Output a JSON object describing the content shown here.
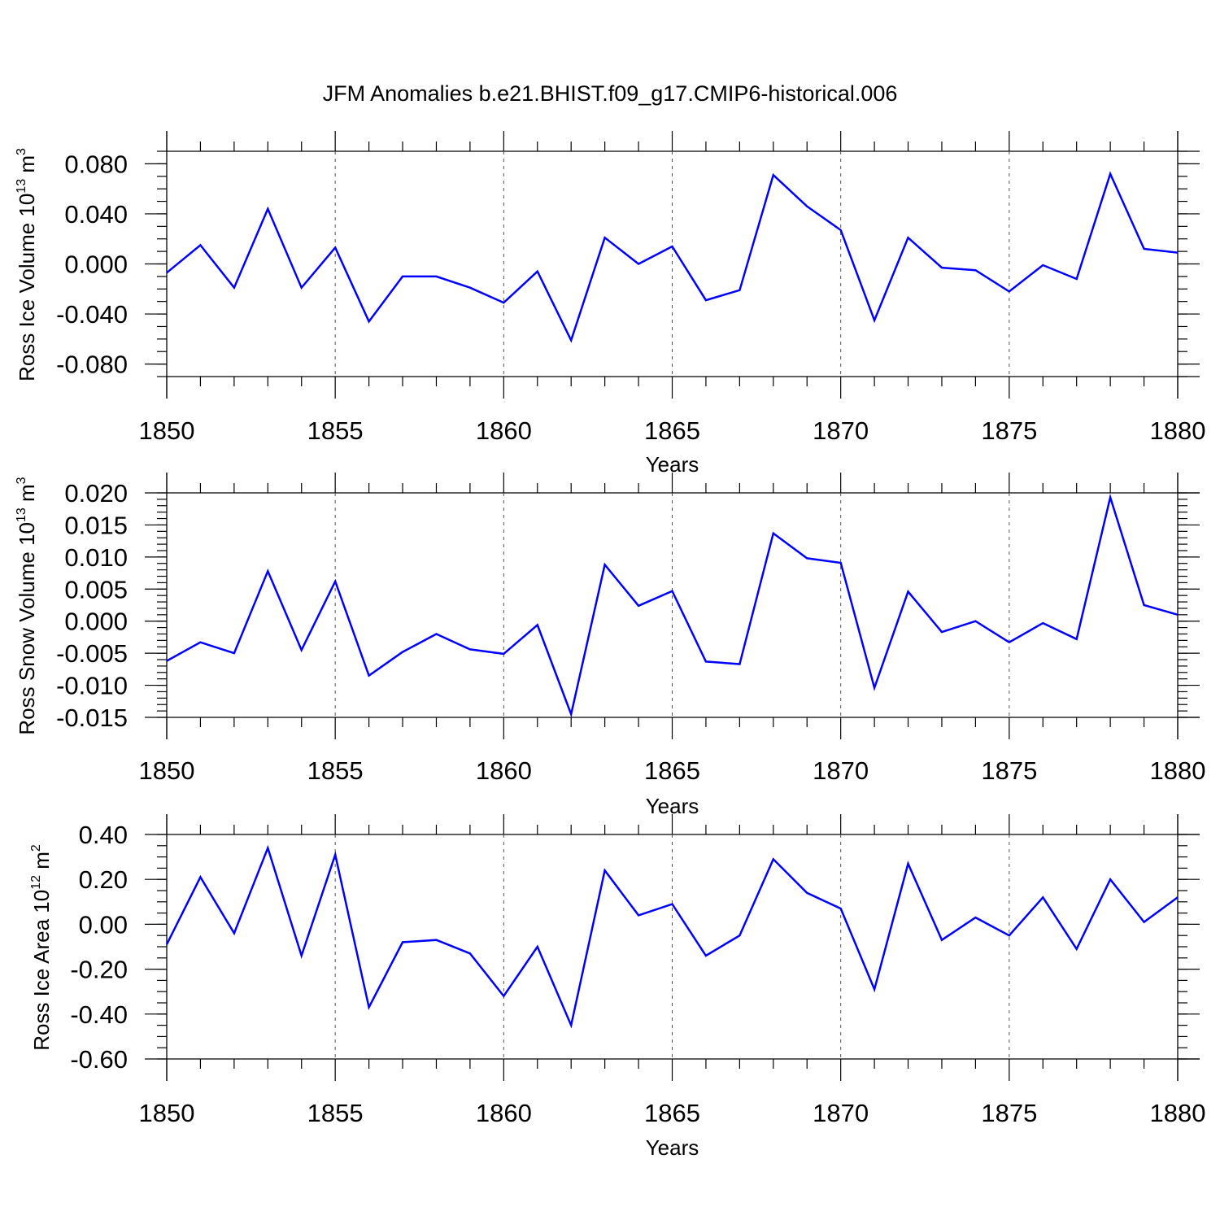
{
  "chart_data": [
    {
      "type": "line",
      "title": "JFM Anomalies b.e21.BHIST.f09_g17.CMIP6-historical.006",
      "xlabel": "Years",
      "ylabel_main": "Ross Ice Volume 10",
      "ylabel_sup": "13",
      "ylabel_unit": "m",
      "ylabel_unit_sup": "3",
      "xlim": [
        1850,
        1880
      ],
      "ylim": [
        -0.09,
        0.09
      ],
      "xticks": [
        "1850",
        "1855",
        "1860",
        "1865",
        "1870",
        "1875",
        "1880"
      ],
      "yticks": [
        -0.08,
        -0.04,
        0.0,
        0.04,
        0.08
      ],
      "ytick_labels": [
        "-0.080",
        "-0.040",
        "0.000",
        "0.040",
        "0.080"
      ],
      "yminor_step": 0.01,
      "series": [
        {
          "name": "Ross Ice Volume",
          "color": "#0000ff",
          "x": [
            1850,
            1851,
            1852,
            1853,
            1854,
            1855,
            1856,
            1857,
            1858,
            1859,
            1860,
            1861,
            1862,
            1863,
            1864,
            1865,
            1866,
            1867,
            1868,
            1869,
            1870,
            1871,
            1872,
            1873,
            1874,
            1875,
            1876,
            1877,
            1878,
            1879,
            1880
          ],
          "values": [
            -0.007,
            0.015,
            -0.019,
            0.044,
            -0.019,
            0.013,
            -0.046,
            -0.01,
            -0.01,
            -0.019,
            -0.031,
            -0.006,
            -0.061,
            0.021,
            0.0,
            0.014,
            -0.029,
            -0.021,
            0.071,
            0.046,
            0.027,
            -0.045,
            0.021,
            -0.003,
            -0.005,
            -0.022,
            -0.001,
            -0.012,
            0.072,
            0.012,
            0.009
          ]
        }
      ]
    },
    {
      "type": "line",
      "title": "",
      "xlabel": "Years",
      "ylabel_main": "Ross Snow Volume 10",
      "ylabel_sup": "13",
      "ylabel_unit": "m",
      "ylabel_unit_sup": "3",
      "xlim": [
        1850,
        1880
      ],
      "ylim": [
        -0.015,
        0.02
      ],
      "xticks": [
        "1850",
        "1855",
        "1860",
        "1865",
        "1870",
        "1875",
        "1880"
      ],
      "yticks": [
        -0.015,
        -0.01,
        -0.005,
        0.0,
        0.005,
        0.01,
        0.015,
        0.02
      ],
      "ytick_labels": [
        "-0.015",
        "-0.010",
        "-0.005",
        "0.000",
        "0.005",
        "0.010",
        "0.015",
        "0.020"
      ],
      "yminor_step": 0.001,
      "series": [
        {
          "name": "Ross Snow Volume",
          "color": "#0000ff",
          "x": [
            1850,
            1851,
            1852,
            1853,
            1854,
            1855,
            1856,
            1857,
            1858,
            1859,
            1860,
            1861,
            1862,
            1863,
            1864,
            1865,
            1866,
            1867,
            1868,
            1869,
            1870,
            1871,
            1872,
            1873,
            1874,
            1875,
            1876,
            1877,
            1878,
            1879,
            1880
          ],
          "values": [
            -0.0062,
            -0.0033,
            -0.005,
            0.0078,
            -0.0045,
            0.0062,
            -0.0085,
            -0.0048,
            -0.002,
            -0.0044,
            -0.0051,
            -0.0006,
            -0.0145,
            0.0088,
            0.0024,
            0.0047,
            -0.0063,
            -0.0067,
            0.0137,
            0.0098,
            0.0091,
            -0.0104,
            0.0046,
            -0.0017,
            0.0,
            -0.0033,
            -0.0003,
            -0.0028,
            0.0193,
            0.0025,
            0.001
          ]
        }
      ]
    },
    {
      "type": "line",
      "title": "",
      "xlabel": "Years",
      "ylabel_main": "Ross Ice Area 10",
      "ylabel_sup": "12",
      "ylabel_unit": "m",
      "ylabel_unit_sup": "2",
      "xlim": [
        1850,
        1880
      ],
      "ylim": [
        -0.6,
        0.4
      ],
      "xticks": [
        "1850",
        "1855",
        "1860",
        "1865",
        "1870",
        "1875",
        "1880"
      ],
      "yticks": [
        -0.6,
        -0.4,
        -0.2,
        0.0,
        0.2,
        0.4
      ],
      "ytick_labels": [
        "-0.60",
        "-0.40",
        "-0.20",
        "0.00",
        "0.20",
        "0.40"
      ],
      "yminor_step": 0.05,
      "series": [
        {
          "name": "Ross Ice Area",
          "color": "#0000ff",
          "x": [
            1850,
            1851,
            1852,
            1853,
            1854,
            1855,
            1856,
            1857,
            1858,
            1859,
            1860,
            1861,
            1862,
            1863,
            1864,
            1865,
            1866,
            1867,
            1868,
            1869,
            1870,
            1871,
            1872,
            1873,
            1874,
            1875,
            1876,
            1877,
            1878,
            1879,
            1880
          ],
          "values": [
            -0.09,
            0.21,
            -0.04,
            0.34,
            -0.14,
            0.31,
            -0.37,
            -0.08,
            -0.07,
            -0.13,
            -0.32,
            -0.1,
            -0.45,
            0.24,
            0.04,
            0.09,
            -0.14,
            -0.05,
            0.29,
            0.14,
            0.07,
            -0.29,
            0.27,
            -0.07,
            0.03,
            -0.05,
            0.12,
            -0.11,
            0.2,
            0.01,
            0.12
          ]
        }
      ]
    }
  ]
}
